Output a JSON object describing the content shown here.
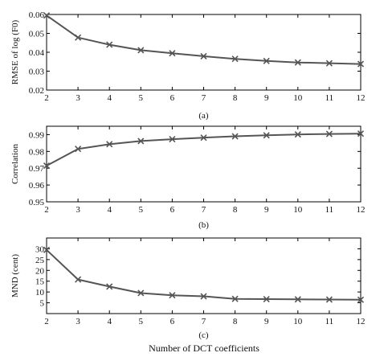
{
  "xlabel": "Number of DCT coefficients",
  "line_color": "#555555",
  "chart_data": [
    {
      "type": "line",
      "caption": "(a)",
      "ylabel": "RMSE of log (F0)",
      "xlim": [
        2,
        12
      ],
      "ylim": [
        0.02,
        0.06
      ],
      "xticks": [
        "2",
        "3",
        "4",
        "5",
        "6",
        "7",
        "8",
        "9",
        "10",
        "11",
        "12"
      ],
      "yticks": [
        "0.02",
        "0.03",
        "0.04",
        "0.05",
        "0.06"
      ],
      "x": [
        2,
        3,
        4,
        5,
        6,
        7,
        8,
        9,
        10,
        11,
        12
      ],
      "y": [
        0.0595,
        0.0478,
        0.044,
        0.0411,
        0.0395,
        0.0379,
        0.0365,
        0.0354,
        0.0346,
        0.0342,
        0.0338
      ],
      "marker": "x"
    },
    {
      "type": "line",
      "caption": "(b)",
      "ylabel": "Correlation",
      "xlim": [
        2,
        12
      ],
      "ylim": [
        0.95,
        0.995
      ],
      "xticks": [
        "2",
        "3",
        "4",
        "5",
        "6",
        "7",
        "8",
        "9",
        "10",
        "11",
        "12"
      ],
      "yticks": [
        "0.95",
        "0.96",
        "0.97",
        "0.98",
        "0.99"
      ],
      "x": [
        2,
        3,
        4,
        5,
        6,
        7,
        8,
        9,
        10,
        11,
        12
      ],
      "y": [
        0.9715,
        0.9815,
        0.9843,
        0.9862,
        0.9873,
        0.9882,
        0.989,
        0.9896,
        0.9901,
        0.9904,
        0.9906
      ],
      "marker": "x"
    },
    {
      "type": "line",
      "caption": "(c)",
      "ylabel": "MND (cent)",
      "xlim": [
        2,
        12
      ],
      "ylim": [
        0,
        35
      ],
      "xticks": [
        "2",
        "3",
        "4",
        "5",
        "6",
        "7",
        "8",
        "9",
        "10",
        "11",
        "12"
      ],
      "yticks": [
        "5",
        "10",
        "15",
        "20",
        "25",
        "30"
      ],
      "x": [
        2,
        3,
        4,
        5,
        6,
        7,
        8,
        9,
        10,
        11,
        12
      ],
      "y": [
        29.5,
        15.8,
        12.5,
        9.5,
        8.5,
        8.0,
        6.8,
        6.7,
        6.6,
        6.5,
        6.4
      ],
      "marker": "x"
    }
  ]
}
